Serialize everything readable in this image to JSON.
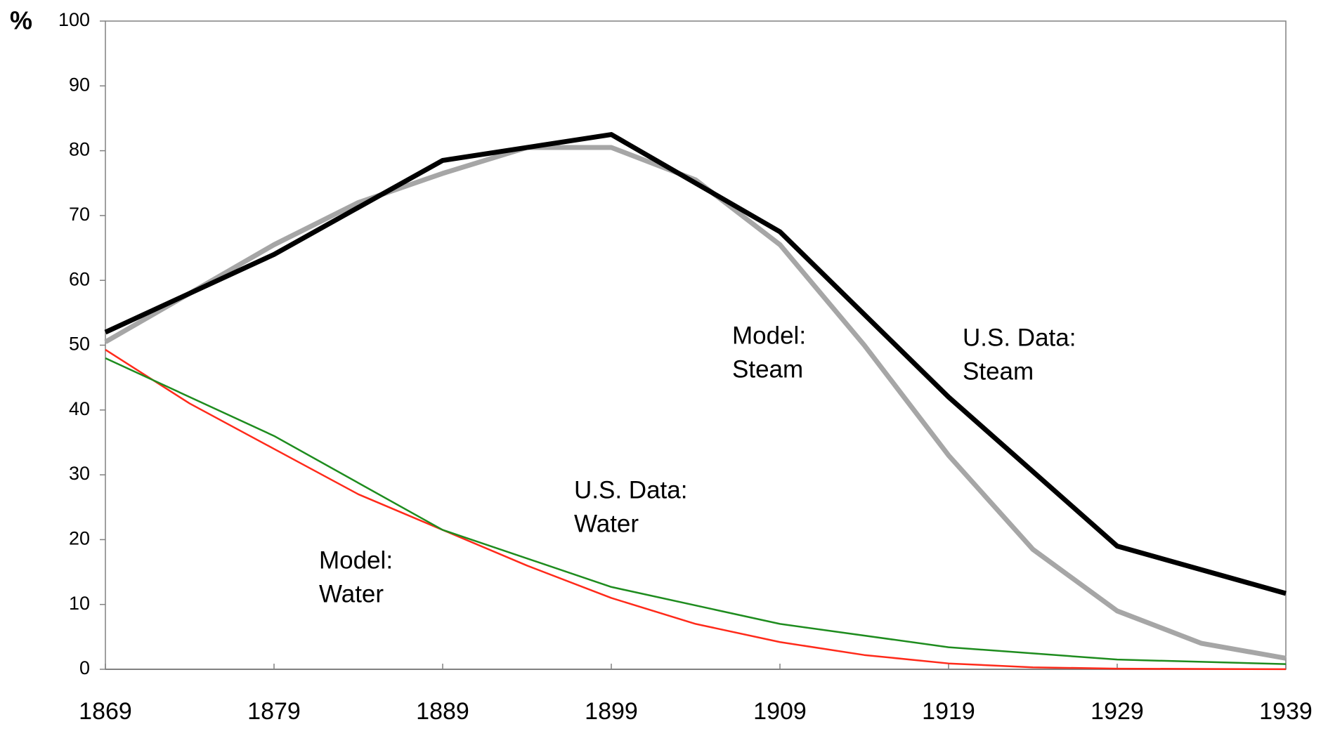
{
  "chart_data": {
    "type": "line",
    "y_unit_label": "%",
    "xlim": [
      1869,
      1939
    ],
    "xticks": [
      1869,
      1879,
      1889,
      1899,
      1909,
      1919,
      1929,
      1939
    ],
    "ylim": [
      0,
      100
    ],
    "yticks": [
      0,
      10,
      20,
      30,
      40,
      50,
      60,
      70,
      80,
      90,
      100
    ],
    "series": [
      {
        "color": "#a6a6a6",
        "width": 7,
        "x": [
          1869,
          1874,
          1879,
          1884,
          1889,
          1894,
          1899,
          1904,
          1909,
          1914,
          1919,
          1924,
          1929,
          1934,
          1939
        ],
        "values": [
          50.5,
          58,
          65.5,
          72,
          76.5,
          80.5,
          80.5,
          75.5,
          65.5,
          50,
          33,
          18.5,
          9,
          4,
          1.7
        ]
      },
      {
        "color": "#000000",
        "width": 7,
        "x": [
          1869,
          1879,
          1889,
          1899,
          1909,
          1919,
          1929,
          1939
        ],
        "values": [
          52,
          64,
          78.5,
          82.5,
          67.5,
          42,
          19,
          11.7
        ]
      },
      {
        "color": "#ff2a1a",
        "width": 2.5,
        "x": [
          1869,
          1874,
          1879,
          1884,
          1889,
          1894,
          1899,
          1904,
          1909,
          1914,
          1919,
          1924,
          1929,
          1934,
          1939
        ],
        "values": [
          49.3,
          41,
          34,
          27,
          21.5,
          16,
          11,
          7,
          4.2,
          2.2,
          0.9,
          0.3,
          0.1,
          0.05,
          0.02
        ]
      },
      {
        "color": "#1e8c1e",
        "width": 2.5,
        "x": [
          1869,
          1879,
          1889,
          1899,
          1909,
          1919,
          1929,
          1939
        ],
        "values": [
          48,
          36,
          21.5,
          12.7,
          7,
          3.4,
          1.5,
          0.8
        ]
      }
    ],
    "annotations": [
      {
        "lines": [
          "Model:",
          "Steam"
        ]
      },
      {
        "lines": [
          "U.S. Data:",
          "Steam"
        ]
      },
      {
        "lines": [
          "U.S. Data:",
          "Water"
        ]
      },
      {
        "lines": [
          "Model:",
          "Water"
        ]
      }
    ]
  }
}
